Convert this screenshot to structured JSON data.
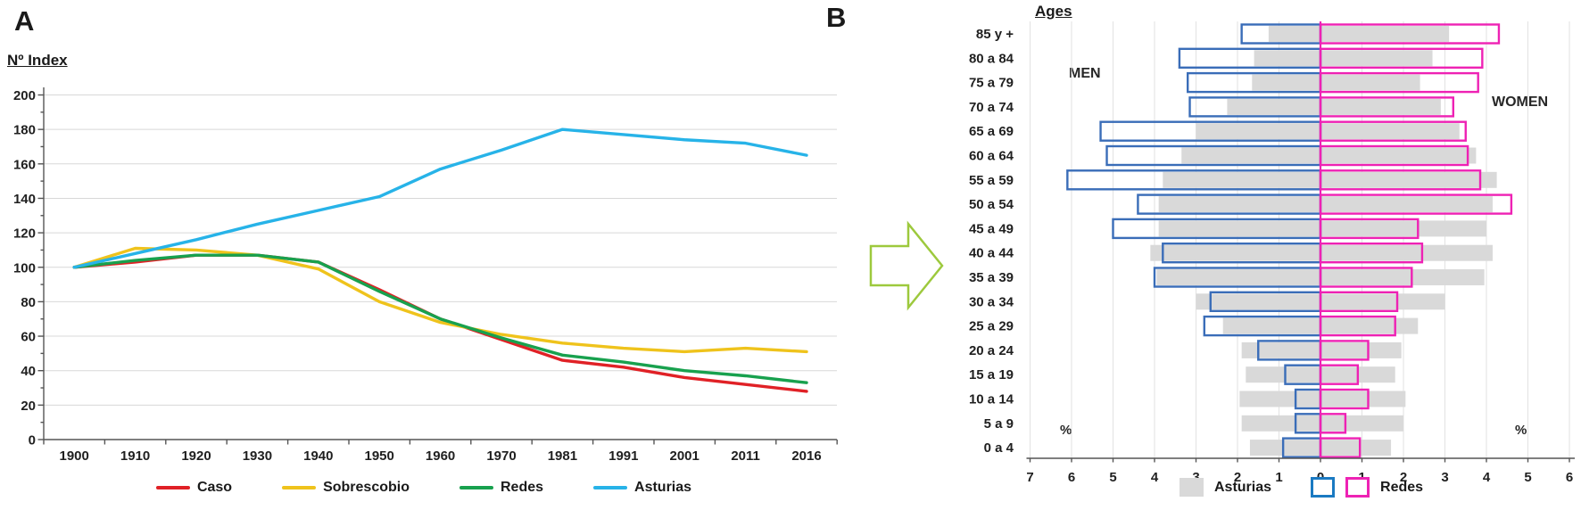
{
  "figure": {
    "panel_a": {
      "label": "A"
    },
    "panel_b": {
      "label": "B"
    }
  },
  "chart_data": [
    {
      "id": "index-evolution",
      "type": "line",
      "title": "",
      "ylabel": "Nº Index",
      "categories": [
        "1900",
        "1910",
        "1920",
        "1930",
        "1940",
        "1950",
        "1960",
        "1970",
        "1981",
        "1991",
        "2001",
        "2011",
        "2016"
      ],
      "ylim": [
        0,
        200
      ],
      "ytick_step": 20,
      "yticks": [
        0,
        20,
        40,
        60,
        80,
        100,
        120,
        140,
        160,
        180,
        200
      ],
      "grid": true,
      "legend_position": "bottom",
      "series": [
        {
          "name": "Caso",
          "color": "#e02126",
          "values": [
            100,
            103,
            107,
            107,
            103,
            87,
            70,
            58,
            46,
            42,
            36,
            32,
            28
          ]
        },
        {
          "name": "Sobrescobio",
          "color": "#efc31c",
          "values": [
            100,
            111,
            110,
            107,
            99,
            80,
            68,
            61,
            56,
            53,
            51,
            53,
            51
          ]
        },
        {
          "name": "Redes",
          "color": "#18a14e",
          "values": [
            100,
            104,
            107,
            107,
            103,
            86,
            70,
            59,
            49,
            45,
            40,
            37,
            33
          ]
        },
        {
          "name": "Asturias",
          "color": "#27b3e8",
          "values": [
            100,
            108,
            116,
            125,
            133,
            141,
            157,
            168,
            180,
            177,
            174,
            172,
            165
          ]
        }
      ]
    },
    {
      "id": "population-pyramid",
      "type": "bar",
      "subtype": "population-pyramid",
      "ages_axis_title": "Ages",
      "unit": "%",
      "left_label": "MEN",
      "right_label": "WOMEN",
      "categories": [
        "85 y +",
        "80 a 84",
        "75 a 79",
        "70 a 74",
        "65 a 69",
        "60 a 64",
        "55 a 59",
        "50 a 54",
        "45 a 49",
        "40 a 44",
        "35 a 39",
        "30 a 34",
        "25 a 29",
        "20 a 24",
        "15 a 19",
        "10 a 14",
        "5 a 9",
        "0 a 4"
      ],
      "x_tick_labels": [
        "7",
        "6",
        "5",
        "4",
        "3",
        "2",
        "1",
        "0",
        "1",
        "2",
        "3",
        "4",
        "5",
        "6"
      ],
      "xlim_left": 7,
      "xlim_right": 6,
      "series": [
        {
          "name": "Asturias",
          "side": "men",
          "style": "fill",
          "color": "#d9d9d9",
          "values": [
            1.25,
            1.6,
            1.65,
            2.25,
            3.0,
            3.35,
            3.8,
            3.9,
            3.9,
            4.1,
            3.95,
            3.0,
            2.35,
            1.9,
            1.8,
            1.95,
            1.9,
            1.7
          ]
        },
        {
          "name": "Asturias",
          "side": "women",
          "style": "fill",
          "color": "#d9d9d9",
          "values": [
            3.1,
            2.7,
            2.4,
            2.9,
            3.35,
            3.75,
            4.25,
            4.15,
            4.0,
            4.15,
            3.95,
            3.0,
            2.35,
            1.95,
            1.8,
            2.05,
            2.0,
            1.7
          ]
        },
        {
          "name": "Redes",
          "side": "men",
          "style": "outline",
          "color": "#3a6db8",
          "values": [
            1.9,
            3.4,
            3.2,
            3.15,
            5.3,
            5.15,
            6.1,
            4.4,
            5.0,
            3.8,
            4.0,
            2.65,
            2.8,
            1.5,
            0.85,
            0.6,
            0.6,
            0.9
          ]
        },
        {
          "name": "Redes",
          "side": "women",
          "style": "outline",
          "color": "#ee22b4",
          "values": [
            4.3,
            3.9,
            3.8,
            3.2,
            3.5,
            3.55,
            3.85,
            4.6,
            2.35,
            2.45,
            2.2,
            1.85,
            1.8,
            1.15,
            0.9,
            1.15,
            0.6,
            0.95
          ]
        }
      ],
      "legend": [
        {
          "label": "Asturias",
          "swatches": [
            {
              "style": "fill",
              "color": "#d9d9d9"
            }
          ]
        },
        {
          "label": "Redes",
          "swatches": [
            {
              "style": "outline",
              "color": "#1a7ac2"
            },
            {
              "style": "outline",
              "color": "#ee22b4"
            }
          ]
        }
      ]
    }
  ],
  "arrow": {
    "color": "#9dc93d"
  }
}
